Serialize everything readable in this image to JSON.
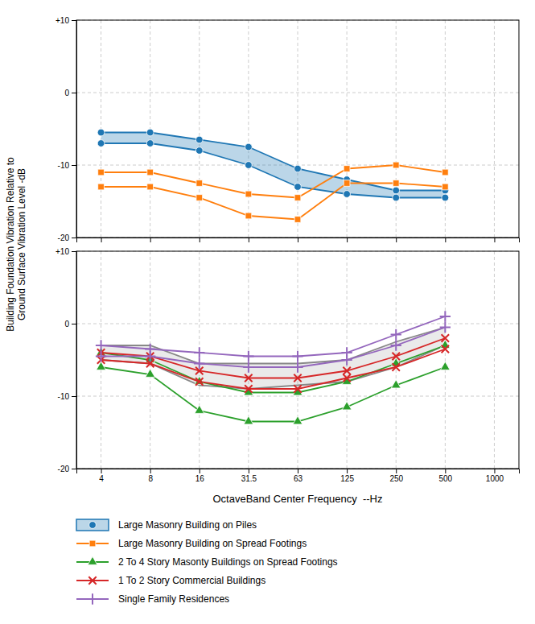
{
  "chart_data": [
    {
      "type": "line",
      "categories": [
        "4",
        "8",
        "16",
        "31.5",
        "63",
        "125",
        "250",
        "500",
        "1000"
      ],
      "series": [
        {
          "name": "Large Masonry Building on Piles",
          "type": "area",
          "marker": "circle",
          "values": [
            -5.5,
            -5.5,
            -6.5,
            -7.5,
            -10.5,
            -12.0,
            -13.5,
            -13.5,
            null
          ],
          "lower": [
            -7.0,
            -7.0,
            -8.0,
            -10.0,
            -13.0,
            -14.0,
            -14.5,
            -14.5,
            null
          ]
        },
        {
          "name": "Large Masonry Building on Spread Footings",
          "type": "line",
          "marker": "square",
          "values": [
            -11.0,
            -11.0,
            -12.5,
            -14.0,
            -14.5,
            -10.5,
            -10.0,
            -11.0,
            null
          ],
          "lower": [
            -13.0,
            -13.0,
            -14.5,
            -17.0,
            -17.5,
            -12.5,
            -12.5,
            -13.0,
            null
          ]
        }
      ],
      "ylim": [
        -20,
        10
      ],
      "yticks": [
        -20,
        -10,
        0,
        {
          "value": 10,
          "label": "+10"
        }
      ],
      "grid": true,
      "tick_labels": "y",
      "legend": "bottom"
    },
    {
      "type": "line",
      "categories": [
        "4",
        "8",
        "16",
        "31.5",
        "63",
        "125",
        "250",
        "500",
        "1000"
      ],
      "xlabel": "OctaveBand Center Frequency  --Hz",
      "ylabel": "Building Foundation Vibration Relative to\nGround Surface Vibration Level -dB",
      "series": [
        {
          "type": "area",
          "values": [
            -3.0,
            -3.0,
            -5.5,
            -5.5,
            -5.5,
            -5.0,
            -2.5,
            -0.5,
            null
          ],
          "lower": [
            -5.0,
            -5.5,
            -8.5,
            -9.0,
            -8.5,
            -8.0,
            -6.0,
            -3.0,
            null
          ]
        },
        {
          "name": "2 To 4 Story Masonty Buildings on Spread Footings",
          "type": "line",
          "marker": "triangle",
          "values": [
            -4.0,
            -5.0,
            -8.0,
            -9.5,
            -9.5,
            -8.0,
            -5.5,
            -3.0,
            null
          ],
          "lower": [
            -6.0,
            -7.0,
            -12.0,
            -13.5,
            -13.5,
            -11.5,
            -8.5,
            -6.0,
            null
          ]
        },
        {
          "name": "1 To 2 Story Commercial Buildings",
          "type": "line",
          "marker": "x",
          "values": [
            -4.0,
            -4.5,
            -6.5,
            -7.5,
            -7.5,
            -6.5,
            -4.5,
            -2.0,
            null
          ],
          "lower": [
            -5.0,
            -5.5,
            -8.0,
            -9.0,
            -9.0,
            -7.5,
            -6.0,
            -3.5,
            null
          ]
        },
        {
          "name": "Single Family Residences",
          "type": "line",
          "marker": "plus",
          "values": [
            -3.0,
            -3.5,
            -4.0,
            -4.5,
            -4.5,
            -4.0,
            -1.5,
            1.0,
            null
          ],
          "lower": [
            -4.5,
            -4.5,
            -5.5,
            -6.0,
            -6.0,
            -5.0,
            -3.0,
            -0.5,
            null
          ]
        }
      ],
      "ylim": [
        -20,
        10
      ],
      "yticks": [
        -20,
        -10,
        0,
        {
          "value": 10,
          "label": "+10"
        }
      ],
      "grid": true,
      "legend": "bottom"
    }
  ]
}
